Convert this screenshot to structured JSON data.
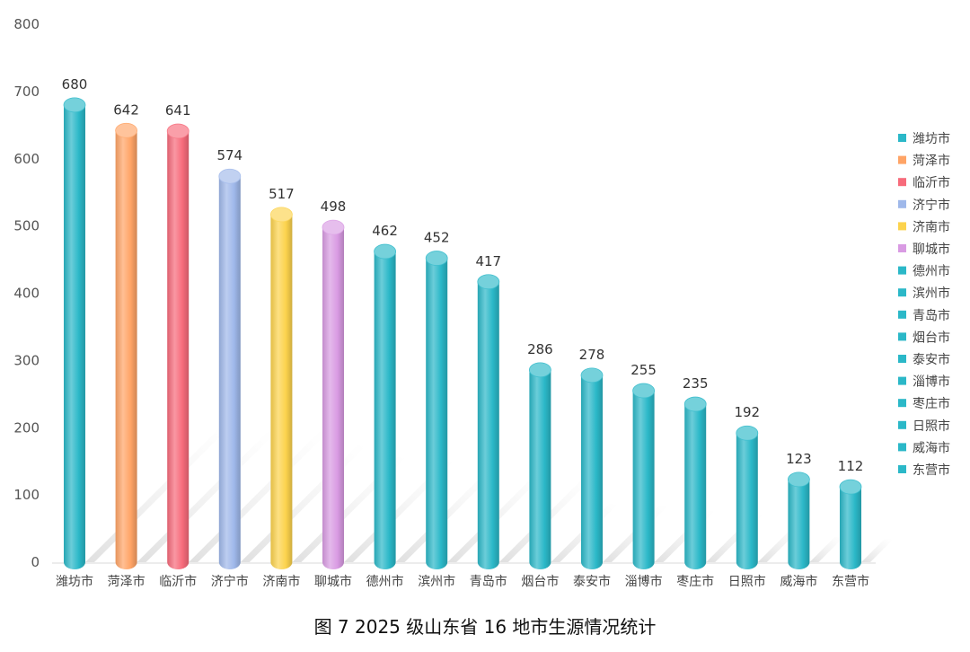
{
  "chart_data": {
    "type": "bar",
    "title": "图 7 2025 级山东省 16 地市生源情况统计",
    "categories": [
      "潍坊市",
      "菏泽市",
      "临沂市",
      "济宁市",
      "济南市",
      "聊城市",
      "德州市",
      "滨州市",
      "青岛市",
      "烟台市",
      "泰安市",
      "淄博市",
      "枣庄市",
      "日照市",
      "威海市",
      "东营市"
    ],
    "values": [
      680,
      642,
      641,
      574,
      517,
      498,
      462,
      452,
      417,
      286,
      278,
      255,
      235,
      192,
      123,
      112
    ],
    "value_labels": [
      "680",
      "642",
      "641",
      "574",
      "517",
      "498",
      "462",
      "452",
      "417",
      "286",
      "278",
      "255",
      "235",
      "192",
      "123",
      "112"
    ],
    "colors": [
      "#2bb8c8",
      "#ffa466",
      "#f76b7b",
      "#9fb8ea",
      "#fcd34d",
      "#d99be3",
      "#2bb8c8",
      "#2bb8c8",
      "#2bb8c8",
      "#2bb8c8",
      "#2bb8c8",
      "#2bb8c8",
      "#2bb8c8",
      "#2bb8c8",
      "#2bb8c8",
      "#2bb8c8"
    ],
    "ylim": [
      0,
      800
    ],
    "yticks": [
      0,
      100,
      200,
      300,
      400,
      500,
      600,
      700,
      800
    ],
    "ytick_labels": [
      "0",
      "100",
      "200",
      "300",
      "400",
      "500",
      "600",
      "700",
      "800"
    ],
    "xlabel": "",
    "ylabel": "",
    "grid": false,
    "legend_position": "right",
    "bar_style": "cylinder"
  }
}
